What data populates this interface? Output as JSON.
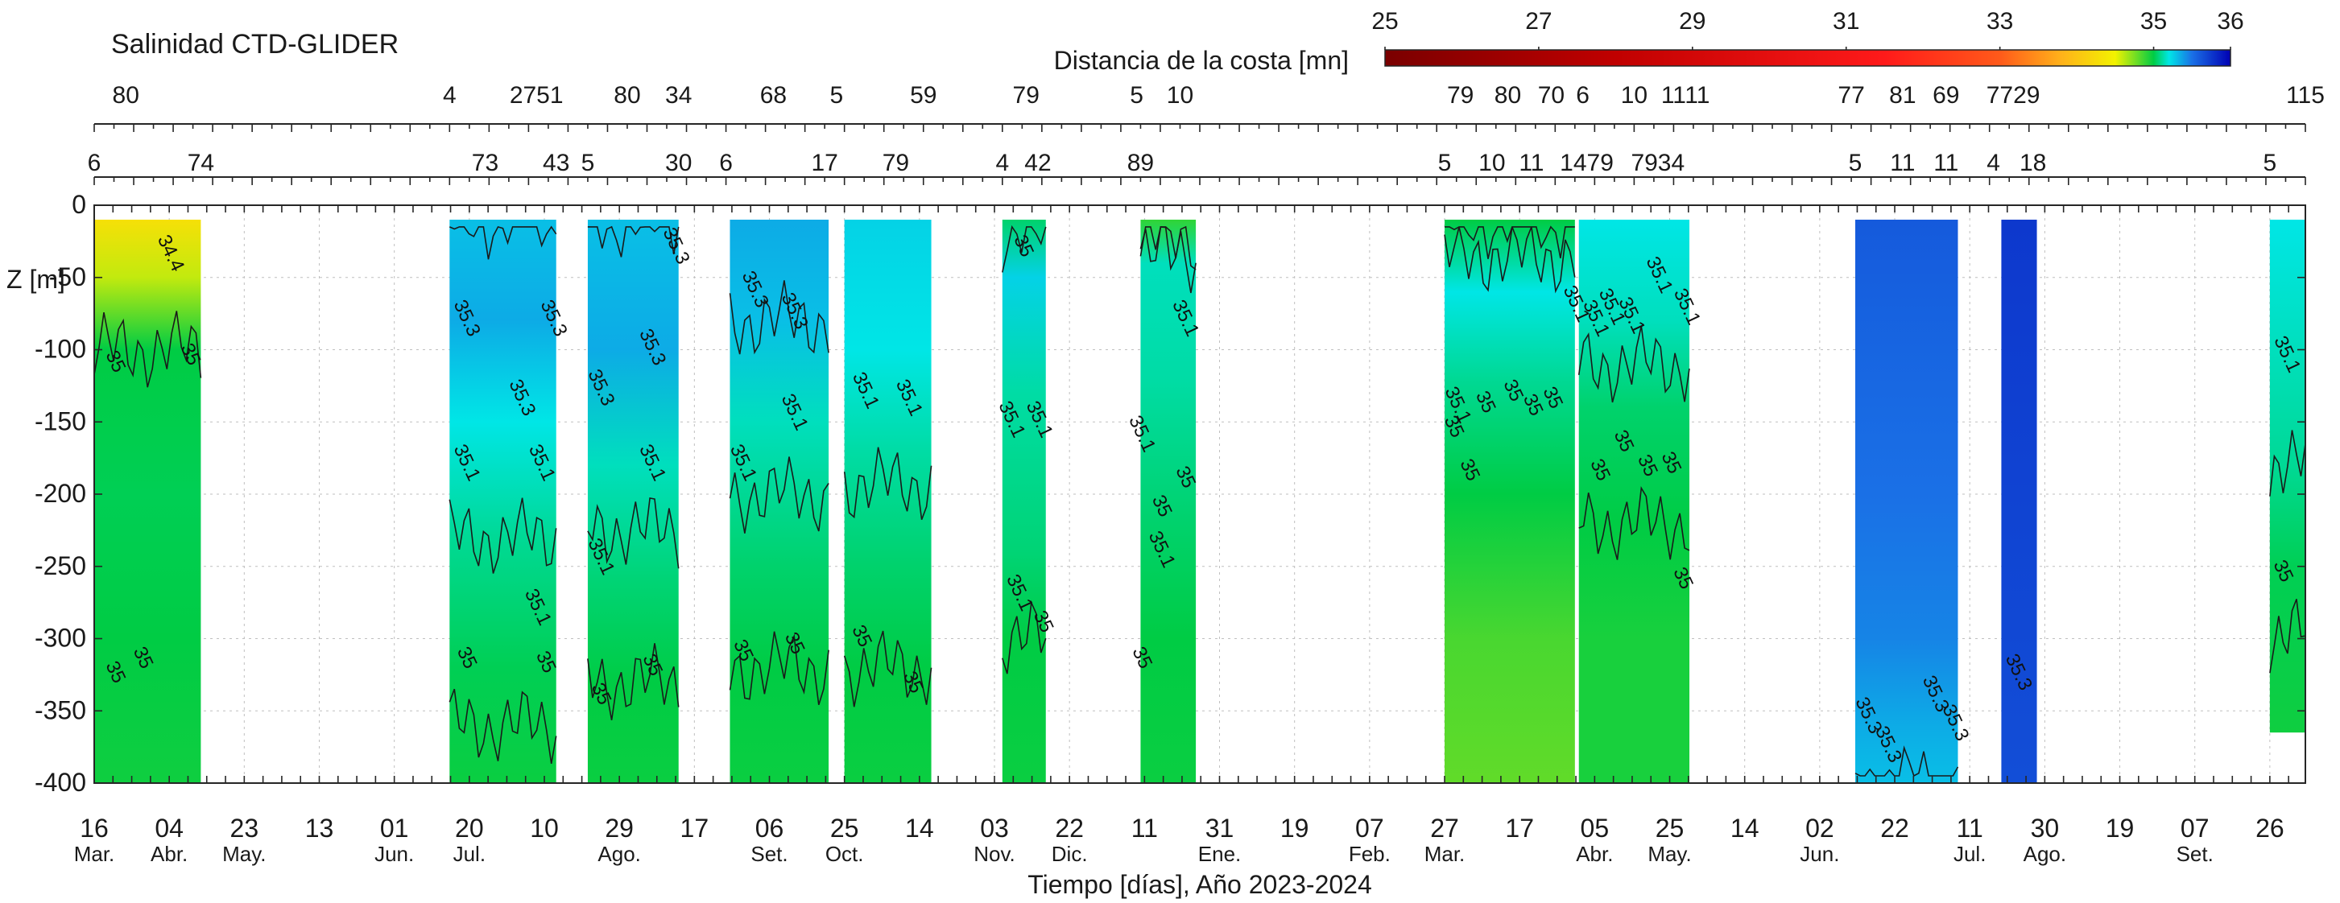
{
  "chart_data": {
    "type": "heatmap",
    "title": "Salinidad CTD-GLIDER",
    "xlabel": "Tiempo [días], Año 2023-2024",
    "ylabel": "Z [m]",
    "ylim": [
      -400,
      0
    ],
    "yticks": [
      0,
      -50,
      -100,
      -150,
      -200,
      -250,
      -300,
      -350,
      -400
    ],
    "x_range_days": [
      0,
      560
    ],
    "x_origin_date": "2023-03-16",
    "grid": true,
    "x_tick_labels": [
      {
        "day": 0,
        "label": "16",
        "month": "Mar."
      },
      {
        "day": 19,
        "label": "04",
        "month": "Abr."
      },
      {
        "day": 38,
        "label": "23",
        "month": "May."
      },
      {
        "day": 57,
        "label": "13",
        "month": ""
      },
      {
        "day": 76,
        "label": "01",
        "month": "Jun."
      },
      {
        "day": 95,
        "label": "20",
        "month": "Jul."
      },
      {
        "day": 114,
        "label": "10",
        "month": ""
      },
      {
        "day": 133,
        "label": "29",
        "month": "Ago."
      },
      {
        "day": 152,
        "label": "17",
        "month": ""
      },
      {
        "day": 171,
        "label": "06",
        "month": "Set."
      },
      {
        "day": 190,
        "label": "25",
        "month": "Oct."
      },
      {
        "day": 209,
        "label": "14",
        "month": ""
      },
      {
        "day": 228,
        "label": "03",
        "month": "Nov."
      },
      {
        "day": 247,
        "label": "22",
        "month": "Dic."
      },
      {
        "day": 266,
        "label": "11",
        "month": ""
      },
      {
        "day": 285,
        "label": "31",
        "month": "Ene."
      },
      {
        "day": 304,
        "label": "19",
        "month": ""
      },
      {
        "day": 323,
        "label": "07",
        "month": "Feb."
      },
      {
        "day": 342,
        "label": "27",
        "month": "Mar."
      },
      {
        "day": 361,
        "label": "17",
        "month": ""
      },
      {
        "day": 380,
        "label": "05",
        "month": "Abr."
      },
      {
        "day": 399,
        "label": "25",
        "month": "May."
      },
      {
        "day": 418,
        "label": "14",
        "month": ""
      },
      {
        "day": 437,
        "label": "02",
        "month": "Jun."
      },
      {
        "day": 456,
        "label": "22",
        "month": ""
      },
      {
        "day": 475,
        "label": "11",
        "month": "Jul."
      },
      {
        "day": 494,
        "label": "30",
        "month": "Ago."
      },
      {
        "day": 513,
        "label": "19",
        "month": ""
      },
      {
        "day": 532,
        "label": "07",
        "month": "Set."
      },
      {
        "day": 551,
        "label": "26",
        "month": ""
      }
    ],
    "distance_labels_row1": [
      {
        "day": 8,
        "label": "80"
      },
      {
        "day": 90,
        "label": "4"
      },
      {
        "day": 112,
        "label": "2751"
      },
      {
        "day": 135,
        "label": "80"
      },
      {
        "day": 148,
        "label": "34"
      },
      {
        "day": 172,
        "label": "68"
      },
      {
        "day": 188,
        "label": "5"
      },
      {
        "day": 210,
        "label": "59"
      },
      {
        "day": 236,
        "label": "79"
      },
      {
        "day": 264,
        "label": "5"
      },
      {
        "day": 275,
        "label": "10"
      },
      {
        "day": 346,
        "label": "79"
      },
      {
        "day": 358,
        "label": "80"
      },
      {
        "day": 369,
        "label": "70"
      },
      {
        "day": 377,
        "label": "6"
      },
      {
        "day": 390,
        "label": "10"
      },
      {
        "day": 400,
        "label": "11"
      },
      {
        "day": 406,
        "label": "11"
      },
      {
        "day": 445,
        "label": "77"
      },
      {
        "day": 458,
        "label": "81"
      },
      {
        "day": 469,
        "label": "69"
      },
      {
        "day": 486,
        "label": "7729"
      },
      {
        "day": 560,
        "label": "115"
      }
    ],
    "distance_labels_row2": [
      {
        "day": 0,
        "label": "6"
      },
      {
        "day": 27,
        "label": "74"
      },
      {
        "day": 99,
        "label": "73"
      },
      {
        "day": 117,
        "label": "43"
      },
      {
        "day": 125,
        "label": "5"
      },
      {
        "day": 148,
        "label": "30"
      },
      {
        "day": 160,
        "label": "6"
      },
      {
        "day": 185,
        "label": "17"
      },
      {
        "day": 203,
        "label": "79"
      },
      {
        "day": 230,
        "label": "4"
      },
      {
        "day": 239,
        "label": "42"
      },
      {
        "day": 265,
        "label": "89"
      },
      {
        "day": 342,
        "label": "5"
      },
      {
        "day": 354,
        "label": "10"
      },
      {
        "day": 364,
        "label": "11"
      },
      {
        "day": 378,
        "label": "1479"
      },
      {
        "day": 396,
        "label": "7934"
      },
      {
        "day": 446,
        "label": "5"
      },
      {
        "day": 458,
        "label": "11"
      },
      {
        "day": 469,
        "label": "11"
      },
      {
        "day": 481,
        "label": "4"
      },
      {
        "day": 491,
        "label": "18"
      },
      {
        "day": 551,
        "label": "5"
      }
    ],
    "colorbar": {
      "title": "Distancia de la costa [mn]",
      "min": 25,
      "max": 36,
      "tick_values": [
        25,
        27,
        29,
        31,
        33,
        35,
        36
      ],
      "tick_labels": [
        "25",
        "27",
        "29",
        "31",
        "33",
        "35",
        "36"
      ],
      "color_stops": [
        {
          "value": 25,
          "color": "#7a0000"
        },
        {
          "value": 28,
          "color": "#c00000"
        },
        {
          "value": 31.5,
          "color": "#ff1a1a"
        },
        {
          "value": 33,
          "color": "#ff5a1a"
        },
        {
          "value": 33.8,
          "color": "#ffb21a"
        },
        {
          "value": 34.5,
          "color": "#f2f200"
        },
        {
          "value": 35,
          "color": "#00cc44"
        },
        {
          "value": 35.2,
          "color": "#00e6e6"
        },
        {
          "value": 35.5,
          "color": "#1a70e6"
        },
        {
          "value": 36,
          "color": "#0000b3"
        }
      ]
    },
    "segments": [
      {
        "start": 0,
        "end": 27,
        "z_top": -10,
        "z_bottom": -400,
        "profile": [
          [
            -10,
            34.3
          ],
          [
            -50,
            34.6
          ],
          [
            -100,
            35.0
          ],
          [
            -200,
            35.02
          ],
          [
            -300,
            35.0
          ],
          [
            -400,
            34.97
          ]
        ]
      },
      {
        "start": 90,
        "end": 117,
        "z_top": -10,
        "z_bottom": -400,
        "profile": [
          [
            -10,
            35.3
          ],
          [
            -80,
            35.35
          ],
          [
            -150,
            35.2
          ],
          [
            -230,
            35.1
          ],
          [
            -320,
            35.02
          ],
          [
            -400,
            34.98
          ]
        ]
      },
      {
        "start": 125,
        "end": 148,
        "z_top": -10,
        "z_bottom": -400,
        "profile": [
          [
            -10,
            35.3
          ],
          [
            -100,
            35.35
          ],
          [
            -180,
            35.15
          ],
          [
            -260,
            35.06
          ],
          [
            -330,
            35.0
          ],
          [
            -400,
            34.98
          ]
        ]
      },
      {
        "start": 161,
        "end": 186,
        "z_top": -10,
        "z_bottom": -400,
        "profile": [
          [
            -10,
            35.35
          ],
          [
            -80,
            35.3
          ],
          [
            -150,
            35.15
          ],
          [
            -250,
            35.05
          ],
          [
            -320,
            35.0
          ],
          [
            -400,
            34.98
          ]
        ]
      },
      {
        "start": 190,
        "end": 212,
        "z_top": -10,
        "z_bottom": -400,
        "profile": [
          [
            -10,
            35.25
          ],
          [
            -100,
            35.2
          ],
          [
            -170,
            35.12
          ],
          [
            -250,
            35.05
          ],
          [
            -320,
            35.0
          ],
          [
            -400,
            34.98
          ]
        ]
      },
      {
        "start": 230,
        "end": 241,
        "z_top": -10,
        "z_bottom": -400,
        "profile": [
          [
            -10,
            35.05
          ],
          [
            -50,
            35.25
          ],
          [
            -130,
            35.12
          ],
          [
            -240,
            35.06
          ],
          [
            -300,
            35.0
          ],
          [
            -400,
            34.98
          ]
        ]
      },
      {
        "start": 265,
        "end": 279,
        "z_top": -10,
        "z_bottom": -400,
        "profile": [
          [
            -10,
            34.9
          ],
          [
            -40,
            35.15
          ],
          [
            -120,
            35.12
          ],
          [
            -220,
            35.05
          ],
          [
            -300,
            35.0
          ],
          [
            -400,
            34.98
          ]
        ]
      },
      {
        "start": 342,
        "end": 375,
        "z_top": -10,
        "z_bottom": -400,
        "profile": [
          [
            -10,
            35.0
          ],
          [
            -60,
            35.2
          ],
          [
            -120,
            35.1
          ],
          [
            -200,
            35.0
          ],
          [
            -300,
            34.85
          ],
          [
            -400,
            34.8
          ]
        ]
      },
      {
        "start": 376,
        "end": 404,
        "z_top": -10,
        "z_bottom": -400,
        "profile": [
          [
            -10,
            35.2
          ],
          [
            -80,
            35.15
          ],
          [
            -140,
            35.05
          ],
          [
            -220,
            35.0
          ],
          [
            -300,
            34.95
          ],
          [
            -400,
            34.95
          ]
        ]
      },
      {
        "start": 446,
        "end": 472,
        "z_top": -10,
        "z_bottom": -400,
        "profile": [
          [
            -10,
            35.6
          ],
          [
            -100,
            35.55
          ],
          [
            -200,
            35.5
          ],
          [
            -300,
            35.45
          ],
          [
            -360,
            35.35
          ],
          [
            -400,
            35.3
          ]
        ]
      },
      {
        "start": 483,
        "end": 492,
        "z_top": -10,
        "z_bottom": -400,
        "profile": [
          [
            -10,
            35.75
          ],
          [
            -200,
            35.7
          ],
          [
            -400,
            35.65
          ]
        ]
      },
      {
        "start": 551,
        "end": 560,
        "z_top": -10,
        "z_bottom": -365,
        "profile": [
          [
            -10,
            35.2
          ],
          [
            -100,
            35.15
          ],
          [
            -180,
            35.1
          ],
          [
            -250,
            35.02
          ],
          [
            -365,
            34.97
          ]
        ]
      }
    ],
    "contour_labels": [
      {
        "day": 18,
        "z": -35,
        "label": "34.4"
      },
      {
        "day": 4,
        "z": -110,
        "label": "35"
      },
      {
        "day": 23,
        "z": -105,
        "label": "35"
      },
      {
        "day": 4,
        "z": -325,
        "label": "35"
      },
      {
        "day": 11,
        "z": -315,
        "label": "35"
      },
      {
        "day": 93,
        "z": -80,
        "label": "35.3"
      },
      {
        "day": 107,
        "z": -135,
        "label": "35.3"
      },
      {
        "day": 115,
        "z": -80,
        "label": "35.3"
      },
      {
        "day": 93,
        "z": -180,
        "label": "35.1"
      },
      {
        "day": 112,
        "z": -180,
        "label": "35.1"
      },
      {
        "day": 111,
        "z": -280,
        "label": "35.1"
      },
      {
        "day": 93,
        "z": -315,
        "label": "35"
      },
      {
        "day": 113,
        "z": -318,
        "label": "35"
      },
      {
        "day": 127,
        "z": -128,
        "label": "35.3"
      },
      {
        "day": 140,
        "z": -100,
        "label": "35.3"
      },
      {
        "day": 146,
        "z": -30,
        "label": "35.3"
      },
      {
        "day": 140,
        "z": -180,
        "label": "35.1"
      },
      {
        "day": 127,
        "z": -245,
        "label": "35.1"
      },
      {
        "day": 127,
        "z": -340,
        "label": "35"
      },
      {
        "day": 140,
        "z": -320,
        "label": "35"
      },
      {
        "day": 166,
        "z": -60,
        "label": "35.3"
      },
      {
        "day": 176,
        "z": -75,
        "label": "35.3"
      },
      {
        "day": 176,
        "z": -145,
        "label": "35.1"
      },
      {
        "day": 163,
        "z": -180,
        "label": "35.1"
      },
      {
        "day": 163,
        "z": -310,
        "label": "35"
      },
      {
        "day": 176,
        "z": -305,
        "label": "35"
      },
      {
        "day": 194,
        "z": -130,
        "label": "35.1"
      },
      {
        "day": 205,
        "z": -135,
        "label": "35.1"
      },
      {
        "day": 193,
        "z": -300,
        "label": "35"
      },
      {
        "day": 206,
        "z": -332,
        "label": "35"
      },
      {
        "day": 234,
        "z": -30,
        "label": "35"
      },
      {
        "day": 231,
        "z": -150,
        "label": "35.1"
      },
      {
        "day": 238,
        "z": -150,
        "label": "35.1"
      },
      {
        "day": 233,
        "z": -270,
        "label": "35.1"
      },
      {
        "day": 239,
        "z": -290,
        "label": "35"
      },
      {
        "day": 264,
        "z": -160,
        "label": "35.1"
      },
      {
        "day": 275,
        "z": -80,
        "label": "35.1"
      },
      {
        "day": 275,
        "z": -190,
        "label": "35"
      },
      {
        "day": 269,
        "z": -210,
        "label": "35"
      },
      {
        "day": 269,
        "z": -240,
        "label": "35.1"
      },
      {
        "day": 264,
        "z": -315,
        "label": "35"
      },
      {
        "day": 344,
        "z": -140,
        "label": "35.1"
      },
      {
        "day": 343,
        "z": -155,
        "label": "35"
      },
      {
        "day": 351,
        "z": -138,
        "label": "35"
      },
      {
        "day": 358,
        "z": -130,
        "label": "35"
      },
      {
        "day": 363,
        "z": -140,
        "label": "35"
      },
      {
        "day": 368,
        "z": -135,
        "label": "35"
      },
      {
        "day": 374,
        "z": -70,
        "label": "35.1"
      },
      {
        "day": 347,
        "z": -185,
        "label": "35"
      },
      {
        "day": 379,
        "z": -80,
        "label": "35.1"
      },
      {
        "day": 383,
        "z": -72,
        "label": "35.1"
      },
      {
        "day": 388,
        "z": -78,
        "label": "35.1"
      },
      {
        "day": 395,
        "z": -50,
        "label": "35.1"
      },
      {
        "day": 402,
        "z": -72,
        "label": "35.1"
      },
      {
        "day": 380,
        "z": -185,
        "label": "35"
      },
      {
        "day": 386,
        "z": -165,
        "label": "35"
      },
      {
        "day": 392,
        "z": -182,
        "label": "35"
      },
      {
        "day": 398,
        "z": -180,
        "label": "35"
      },
      {
        "day": 401,
        "z": -260,
        "label": "35"
      },
      {
        "day": 448,
        "z": -355,
        "label": "35.3"
      },
      {
        "day": 453,
        "z": -375,
        "label": "35.3"
      },
      {
        "day": 465,
        "z": -340,
        "label": "35.3"
      },
      {
        "day": 470,
        "z": -360,
        "label": "35.3"
      },
      {
        "day": 486,
        "z": -325,
        "label": "35.3"
      },
      {
        "day": 554,
        "z": -105,
        "label": "35.1"
      },
      {
        "day": 553,
        "z": -255,
        "label": "35"
      }
    ]
  }
}
